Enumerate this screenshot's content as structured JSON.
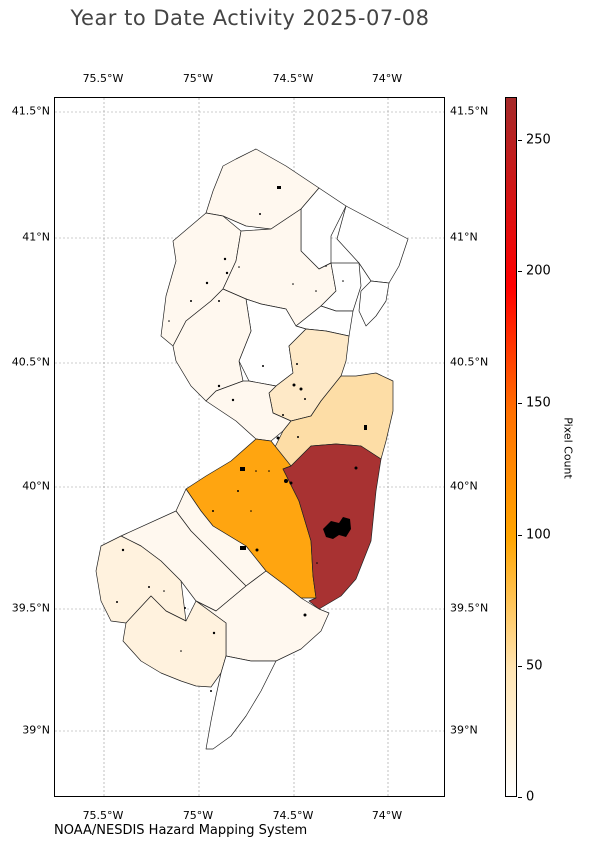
{
  "title": "Year to Date Activity 2025-07-08",
  "credit": "NOAA/NESDIS Hazard Mapping System",
  "longitude_ticks": [
    "75.5°W",
    "75°W",
    "74.5°W",
    "74°W"
  ],
  "latitude_ticks": [
    "41.5°N",
    "41°N",
    "40.5°N",
    "40°N",
    "39.5°N",
    "39°N"
  ],
  "colorbar": {
    "title": "Pixel Count",
    "ticks": [
      "0",
      "50",
      "100",
      "150",
      "200",
      "250"
    ],
    "colors": [
      "#ffffff",
      "#ffe5b4",
      "#ffa500",
      "#ff7000",
      "#ff0000",
      "#a52a2a"
    ]
  },
  "region_colors": {
    "none": "#ffffff",
    "very_low": "#fff8ef",
    "low": "#fff2de",
    "medium_low": "#fee9c7",
    "medium": "#fddda6",
    "high": "#ffa510",
    "very_high": "#a83232"
  }
}
